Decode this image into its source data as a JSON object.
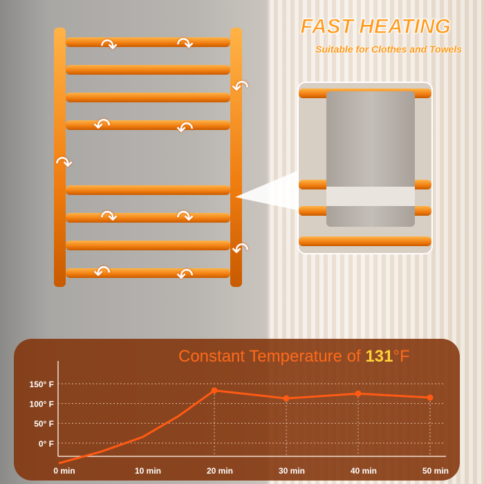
{
  "header": {
    "title": "FAST HEATING",
    "subtitle": "Suitable for Clothes and Towels"
  },
  "colors": {
    "accent": "#ff9a1a",
    "line": "#ff5a14",
    "panel": "#82340a",
    "highlight": "#ffd23a"
  },
  "chart_data": {
    "type": "line",
    "title_prefix": "Constant Temperature of ",
    "title_value": "131",
    "title_unit": "°F",
    "x_ticks": [
      "0 min",
      "10 min",
      "20 min",
      "30 min",
      "40 min",
      "50 min"
    ],
    "y_ticks": [
      "150° F",
      "100° F",
      "50° F",
      "0° F"
    ],
    "y_tick_values": [
      150,
      100,
      50,
      0
    ],
    "x": [
      0,
      5,
      10,
      15,
      20,
      30,
      40,
      50
    ],
    "y": [
      -51,
      -22,
      15,
      68,
      133,
      113,
      125,
      115
    ],
    "markers_at_x": [
      20,
      30,
      40,
      50
    ],
    "grid": true,
    "xlim": [
      0,
      50
    ]
  }
}
